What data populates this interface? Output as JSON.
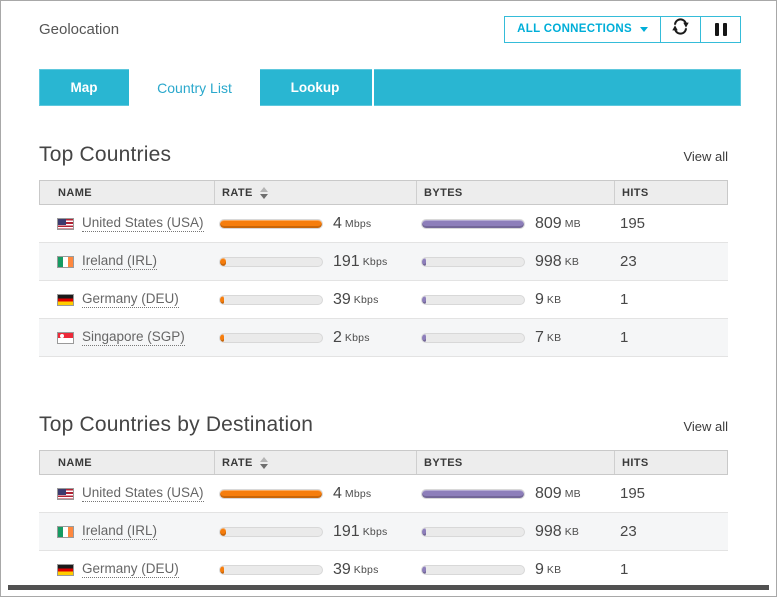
{
  "header": {
    "title": "Geolocation",
    "connections_dropdown_label": "ALL CONNECTIONS",
    "icons": {
      "dropdown_caret": "chevron-down-icon",
      "refresh": "refresh-icon",
      "pause": "pause-icon",
      "sort": "sort-arrows-icon"
    }
  },
  "tabs": [
    {
      "label": "Map",
      "active": false
    },
    {
      "label": "Country List",
      "active": true
    },
    {
      "label": "Lookup",
      "active": false
    }
  ],
  "colors": {
    "accent_cyan": "#29b6d2",
    "link_cyan": "#00aed8",
    "rate_bar": "#f67d0c",
    "bytes_bar": "#8d7eba",
    "bar_track": "#eaeaea",
    "bottom_edge": "#515151"
  },
  "sections": [
    {
      "title": "Top Countries",
      "view_all": "View all",
      "columns": [
        "NAME",
        "RATE",
        "BYTES",
        "HITS"
      ],
      "sorted_column": "RATE",
      "rows": [
        {
          "flag": "us",
          "name": "United States (USA)",
          "rate_value": "4",
          "rate_unit": "Mbps",
          "rate_pct": 100,
          "bytes_value": "809",
          "bytes_unit": "MB",
          "bytes_pct": 100,
          "hits": "195"
        },
        {
          "flag": "ie",
          "name": "Ireland (IRL)",
          "rate_value": "191",
          "rate_unit": "Kbps",
          "rate_pct": 6,
          "bytes_value": "998",
          "bytes_unit": "KB",
          "bytes_pct": 3,
          "hits": "23"
        },
        {
          "flag": "de",
          "name": "Germany (DEU)",
          "rate_value": "39",
          "rate_unit": "Kbps",
          "rate_pct": 2,
          "bytes_value": "9",
          "bytes_unit": "KB",
          "bytes_pct": 2,
          "hits": "1"
        },
        {
          "flag": "sg",
          "name": "Singapore (SGP)",
          "rate_value": "2",
          "rate_unit": "Kbps",
          "rate_pct": 2,
          "bytes_value": "7",
          "bytes_unit": "KB",
          "bytes_pct": 2,
          "hits": "1"
        }
      ]
    },
    {
      "title": "Top Countries by Destination",
      "view_all": "View all",
      "columns": [
        "NAME",
        "RATE",
        "BYTES",
        "HITS"
      ],
      "sorted_column": "RATE",
      "rows": [
        {
          "flag": "us",
          "name": "United States (USA)",
          "rate_value": "4",
          "rate_unit": "Mbps",
          "rate_pct": 100,
          "bytes_value": "809",
          "bytes_unit": "MB",
          "bytes_pct": 100,
          "hits": "195"
        },
        {
          "flag": "ie",
          "name": "Ireland (IRL)",
          "rate_value": "191",
          "rate_unit": "Kbps",
          "rate_pct": 6,
          "bytes_value": "998",
          "bytes_unit": "KB",
          "bytes_pct": 3,
          "hits": "23"
        },
        {
          "flag": "de",
          "name": "Germany (DEU)",
          "rate_value": "39",
          "rate_unit": "Kbps",
          "rate_pct": 2,
          "bytes_value": "9",
          "bytes_unit": "KB",
          "bytes_pct": 2,
          "hits": "1"
        }
      ]
    }
  ]
}
